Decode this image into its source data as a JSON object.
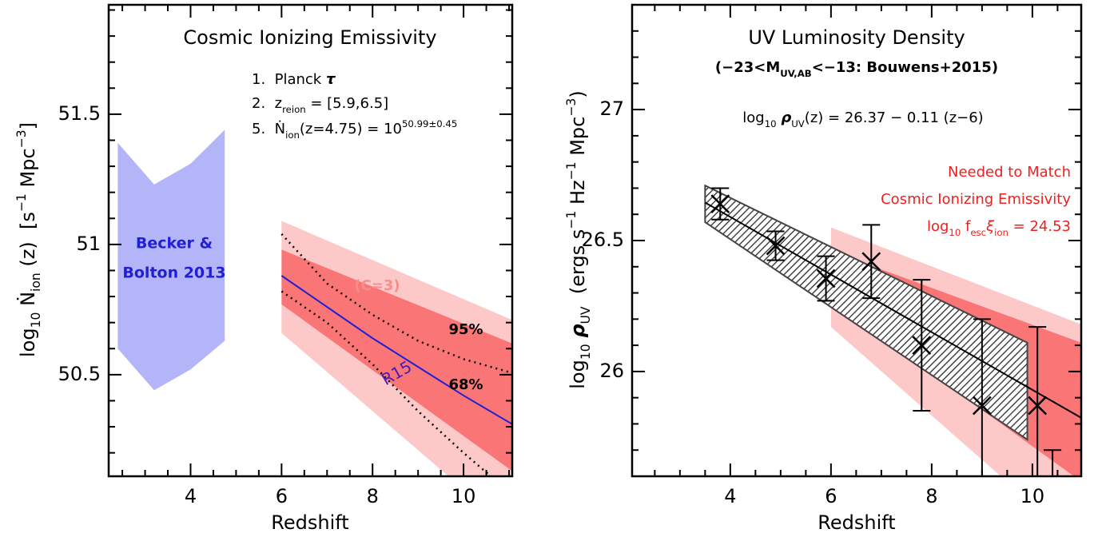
{
  "chart_data": [
    {
      "type": "area",
      "title": "Cosmic Ionizing Emissivity",
      "x_label": "Redshift",
      "y_label": [
        "log",
        "10",
        " Ṅ",
        "ion",
        " (z)  [s",
        "−1",
        " Mpc",
        "−3",
        "]"
      ],
      "notes": [
        [
          "1.  Planck ",
          "τ"
        ],
        [
          "2.  z",
          "reion",
          " = [5.9,6.5]"
        ],
        [
          "5.  Ṅ",
          "ion",
          "(z=4.75) = 10",
          "50.99±0.45"
        ]
      ],
      "annotation": "(C=3)",
      "xlim": [
        2.2,
        11.07
      ],
      "ylim": [
        50.11,
        51.92
      ],
      "xticks": [
        4,
        6,
        8,
        10
      ],
      "yticks": [
        50.5,
        51,
        51.5
      ],
      "xminor": [
        2.5,
        3,
        3.5,
        4.5,
        5,
        5.5,
        6.5,
        7,
        7.5,
        8.5,
        9,
        9.5,
        10.5,
        11
      ],
      "yminor": [
        50.2,
        50.3,
        50.4,
        50.6,
        50.7,
        50.8,
        50.9,
        51.1,
        51.2,
        51.3,
        51.4,
        51.6,
        51.7,
        51.8,
        51.9
      ],
      "bands": [
        {
          "label": [
            "Becker &",
            "Bolton 2013"
          ],
          "color": "#b4b4f8",
          "x": [
            2.4,
            3.2,
            4,
            4.75
          ],
          "upper": [
            51.39,
            51.23,
            51.31,
            51.44
          ],
          "lower": [
            50.6,
            50.44,
            50.52,
            50.63
          ]
        },
        {
          "label": "95%",
          "color": "#fcc8c8",
          "x": [
            6,
            11.07
          ],
          "upper": [
            51.09,
            50.71
          ],
          "lower": [
            50.66,
            49.9
          ]
        },
        {
          "label": "68%",
          "color": "#fa7676",
          "x": [
            6,
            11.07
          ],
          "upper": [
            50.98,
            50.62
          ],
          "lower": [
            50.77,
            50.13
          ]
        }
      ],
      "lines": [
        {
          "color": "#000000",
          "style": "dotted",
          "x": [
            6,
            7,
            8,
            9,
            10,
            11
          ],
          "values": [
            51.04,
            50.85,
            50.73,
            50.63,
            50.56,
            50.51
          ]
        },
        {
          "color": "#000000",
          "style": "dotted",
          "x": [
            6,
            7,
            8,
            9,
            10,
            10.6
          ],
          "values": [
            50.82,
            50.7,
            50.54,
            50.36,
            50.2,
            50.11
          ]
        },
        {
          "label": "R15",
          "color": "#1f1fd6",
          "style": "solid",
          "x": [
            6,
            7,
            8,
            9,
            10,
            11.07
          ],
          "values": [
            50.88,
            50.76,
            50.64,
            50.53,
            50.42,
            50.31
          ]
        }
      ]
    },
    {
      "type": "errorbar",
      "title": "UV Luminosity Density",
      "subtitle": [
        "(−23<M",
        "UV,AB",
        "<−13: Bouwens+2015)"
      ],
      "equation": [
        "log",
        "10",
        " ",
        "ρ",
        "UV",
        "(z) = 26.37 − 0.11 (z−6)"
      ],
      "notes": [
        [
          "Needed to Match"
        ],
        [
          "Cosmic Ionizing Emissivity"
        ],
        [
          "log",
          "10",
          " f",
          "esc",
          "ξ",
          "ion",
          " = 24.53"
        ]
      ],
      "x_label": "Redshift",
      "y_label": [
        "log",
        "10",
        " ",
        "ρ",
        "UV",
        "  (ergs s",
        "−1",
        " Hz",
        "−1",
        " Mpc",
        "−3",
        ")"
      ],
      "xlim": [
        2.05,
        10.97
      ],
      "ylim": [
        25.6,
        27.4
      ],
      "xticks": [
        4,
        6,
        8,
        10
      ],
      "yticks": [
        26,
        26.5,
        27
      ],
      "xminor": [
        2.5,
        3,
        3.5,
        4.5,
        5,
        5.5,
        6.5,
        7,
        7.5,
        8.5,
        9,
        9.5,
        10.5
      ],
      "yminor": [
        25.7,
        25.8,
        25.9,
        26.1,
        26.2,
        26.3,
        26.4,
        26.6,
        26.7,
        26.8,
        26.9,
        27.1,
        27.2,
        27.3
      ],
      "bands": [
        {
          "color": "#fcc8c8",
          "x": [
            6,
            10.97
          ],
          "upper": [
            26.55,
            26.18
          ],
          "lower": [
            26.17,
            25.33
          ]
        },
        {
          "color": "#fa7676",
          "x": [
            6,
            10.97
          ],
          "upper": [
            26.46,
            26.11
          ],
          "lower": [
            26.27,
            25.58
          ]
        },
        {
          "color": "#444444",
          "pattern": "hatch",
          "x": [
            3.5,
            9.9
          ],
          "upper": [
            26.71,
            26.11
          ],
          "lower": [
            26.57,
            25.74
          ]
        }
      ],
      "fit": {
        "color": "#000000",
        "x": [
          3.5,
          11
        ],
        "values": [
          26.645,
          25.82
        ]
      },
      "points": {
        "color": "#000000",
        "x": [
          3.8,
          4.9,
          5.9,
          6.8,
          7.8,
          9.0,
          10.1
        ],
        "values": [
          26.64,
          26.48,
          26.355,
          26.42,
          26.1,
          25.87,
          25.87
        ],
        "errors": [
          0.06,
          0.055,
          0.085,
          0.14,
          0.25,
          0.33,
          0.3
        ]
      },
      "upper_limits": {
        "x": [
          10.4
        ],
        "values": [
          25.7
        ]
      }
    }
  ]
}
